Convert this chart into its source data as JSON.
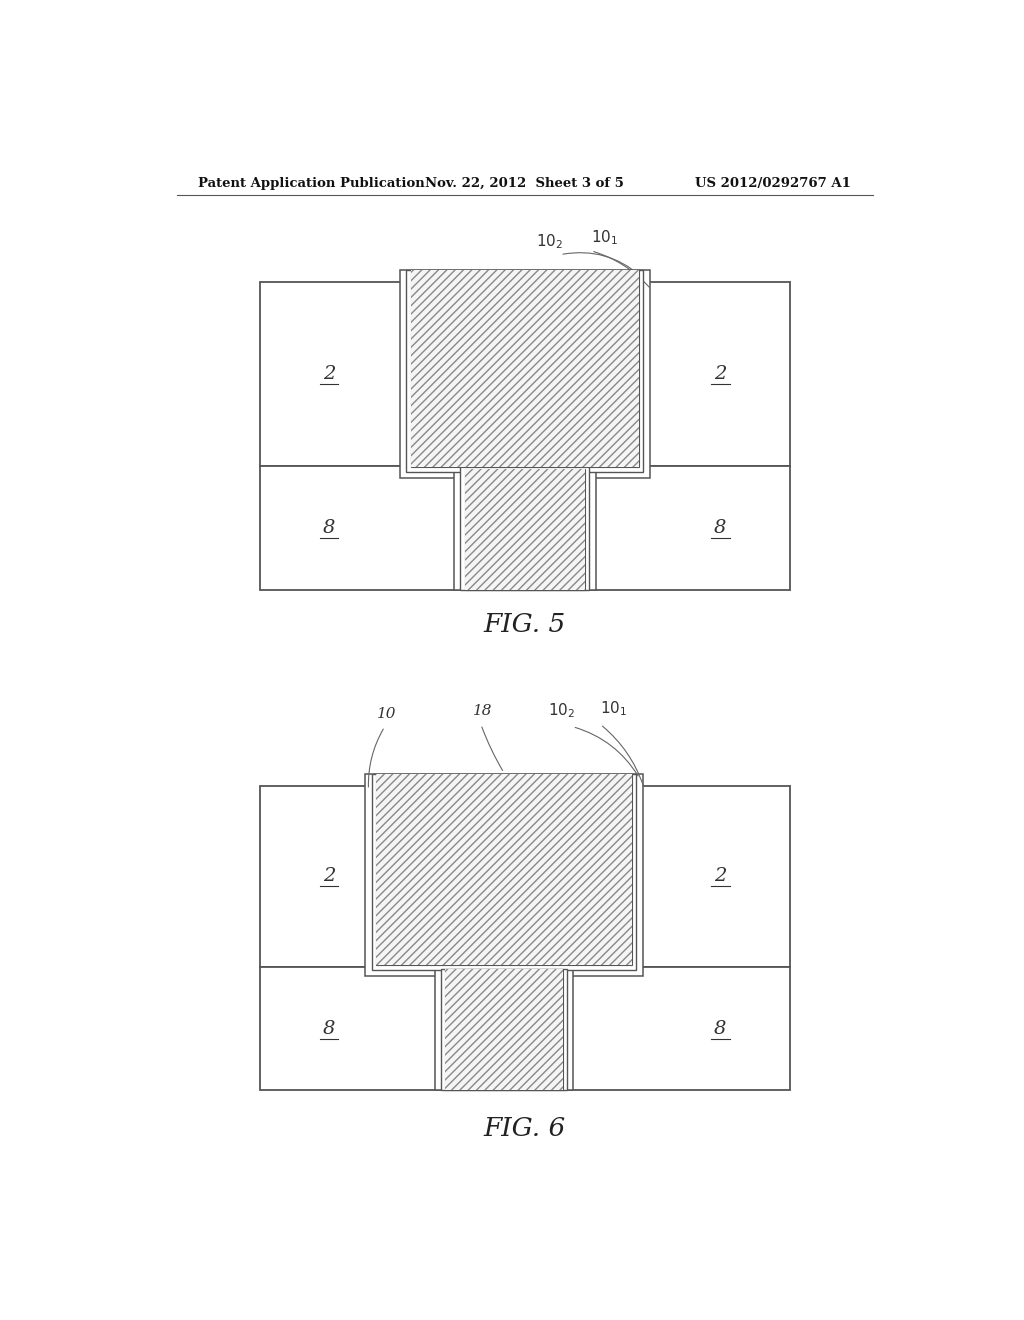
{
  "bg_color": "#ffffff",
  "header_left": "Patent Application Publication",
  "header_center": "Nov. 22, 2012  Sheet 3 of 5",
  "header_right": "US 2012/0292767 A1",
  "fig5_caption": "FIG. 5",
  "fig6_caption": "FIG. 6",
  "line_color": "#555555",
  "hatch_color": "#888888",
  "font_color": "#333333",
  "fill_color": "#ffffff",
  "hatch_fill": "#f5f5f5"
}
